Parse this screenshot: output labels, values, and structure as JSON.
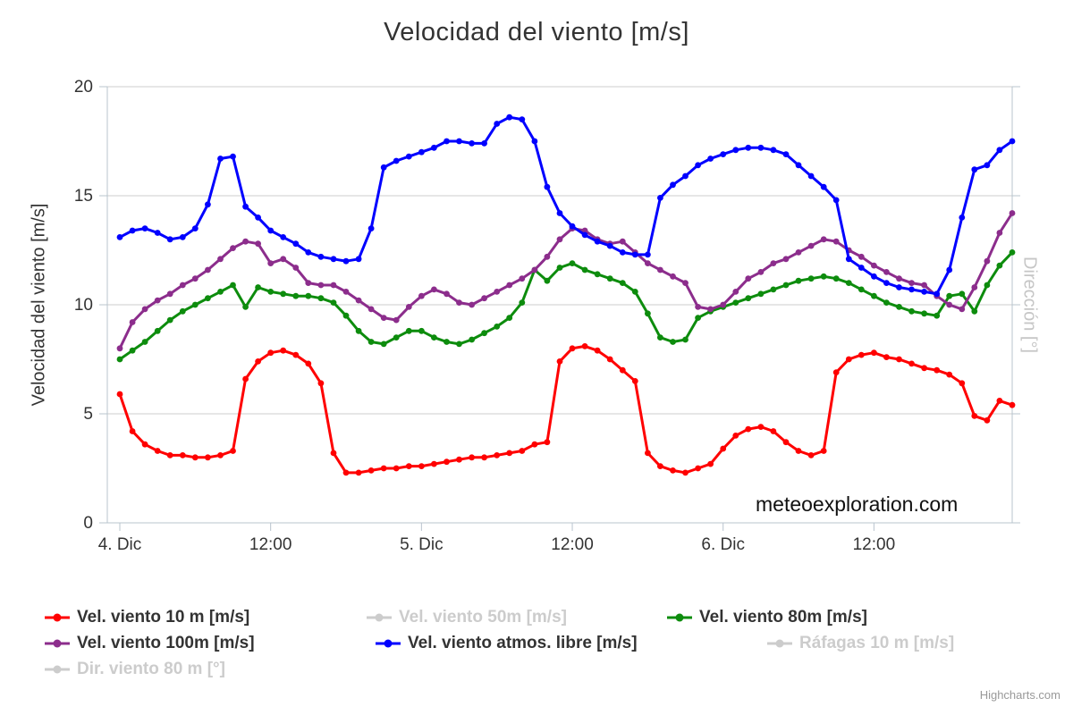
{
  "title": "Velocidad del viento [m/s]",
  "watermark": "meteoexploration.com",
  "credits": "Highcharts.com",
  "y_axis": {
    "title": "Velocidad del viento [m/s]",
    "ticks": [
      0,
      5,
      10,
      15,
      20
    ]
  },
  "y_axis_right": {
    "title": "Dirección [°]"
  },
  "x_axis": {
    "tick_hours": [
      0,
      12,
      24,
      36,
      48,
      60
    ],
    "tick_labels": [
      "4. Dic",
      "12:00",
      "5. Dic",
      "12:00",
      "6. Dic",
      "12:00"
    ]
  },
  "chart_data": {
    "type": "line",
    "x_unit": "hours from 4. Dic 00:00, hourly points",
    "ylim": [
      0,
      20
    ],
    "grid": "horizontal",
    "legend_position": "bottom-left",
    "series": [
      {
        "name": "Vel. viento 10 m [m/s]",
        "color": "#FF0000",
        "values": [
          5.9,
          4.2,
          3.6,
          3.3,
          3.1,
          3.1,
          3.0,
          3.0,
          3.1,
          3.3,
          6.6,
          7.4,
          7.8,
          7.9,
          7.7,
          7.3,
          6.4,
          3.2,
          2.3,
          2.3,
          2.4,
          2.5,
          2.5,
          2.6,
          2.6,
          2.7,
          2.8,
          2.9,
          3.0,
          3.0,
          3.1,
          3.2,
          3.3,
          3.6,
          3.7,
          7.4,
          8.0,
          8.1,
          7.9,
          7.5,
          7.0,
          6.5,
          3.2,
          2.6,
          2.4,
          2.3,
          2.5,
          2.7,
          3.4,
          4.0,
          4.3,
          4.4,
          4.2,
          3.7,
          3.3,
          3.1,
          3.3,
          6.9,
          7.5,
          7.7,
          7.8,
          7.6,
          7.5,
          7.3,
          7.1,
          7.0,
          6.8,
          6.4,
          4.9,
          4.7,
          5.6,
          5.4
        ]
      },
      {
        "name": "Vel. viento 80m [m/s]",
        "color": "#0D8C0D",
        "values": [
          7.5,
          7.9,
          8.3,
          8.8,
          9.3,
          9.7,
          10.0,
          10.3,
          10.6,
          10.9,
          9.9,
          10.8,
          10.6,
          10.5,
          10.4,
          10.4,
          10.3,
          10.1,
          9.5,
          8.8,
          8.3,
          8.2,
          8.5,
          8.8,
          8.8,
          8.5,
          8.3,
          8.2,
          8.4,
          8.7,
          9.0,
          9.4,
          10.1,
          11.6,
          11.1,
          11.7,
          11.9,
          11.6,
          11.4,
          11.2,
          11.0,
          10.6,
          9.6,
          8.5,
          8.3,
          8.4,
          9.4,
          9.7,
          9.9,
          10.1,
          10.3,
          10.5,
          10.7,
          10.9,
          11.1,
          11.2,
          11.3,
          11.2,
          11.0,
          10.7,
          10.4,
          10.1,
          9.9,
          9.7,
          9.6,
          9.5,
          10.4,
          10.5,
          9.7,
          10.9,
          11.8,
          12.4
        ]
      },
      {
        "name": "Vel. viento 100m [m/s]",
        "color": "#8C2D8C",
        "values": [
          8.0,
          9.2,
          9.8,
          10.2,
          10.5,
          10.9,
          11.2,
          11.6,
          12.1,
          12.6,
          12.9,
          12.8,
          11.9,
          12.1,
          11.7,
          11.0,
          10.9,
          10.9,
          10.6,
          10.2,
          9.8,
          9.4,
          9.3,
          9.9,
          10.4,
          10.7,
          10.5,
          10.1,
          10.0,
          10.3,
          10.6,
          10.9,
          11.2,
          11.6,
          12.2,
          13.0,
          13.5,
          13.4,
          13.0,
          12.8,
          12.9,
          12.4,
          11.9,
          11.6,
          11.3,
          11.0,
          9.9,
          9.8,
          10.0,
          10.6,
          11.2,
          11.5,
          11.9,
          12.1,
          12.4,
          12.7,
          13.0,
          12.9,
          12.5,
          12.2,
          11.8,
          11.5,
          11.2,
          11.0,
          10.9,
          10.4,
          10.0,
          9.8,
          10.8,
          12.0,
          13.3,
          14.2
        ]
      },
      {
        "name": "Vel. viento atmos. libre [m/s]",
        "color": "#0000FF",
        "values": [
          13.1,
          13.4,
          13.5,
          13.3,
          13.0,
          13.1,
          13.5,
          14.6,
          16.7,
          16.8,
          14.5,
          14.0,
          13.4,
          13.1,
          12.8,
          12.4,
          12.2,
          12.1,
          12.0,
          12.1,
          13.5,
          16.3,
          16.6,
          16.8,
          17.0,
          17.2,
          17.5,
          17.5,
          17.4,
          17.4,
          18.3,
          18.6,
          18.5,
          17.5,
          15.4,
          14.2,
          13.6,
          13.2,
          12.9,
          12.7,
          12.4,
          12.3,
          12.3,
          14.9,
          15.5,
          15.9,
          16.4,
          16.7,
          16.9,
          17.1,
          17.2,
          17.2,
          17.1,
          16.9,
          16.4,
          15.9,
          15.4,
          14.8,
          12.1,
          11.7,
          11.3,
          11.0,
          10.8,
          10.7,
          10.6,
          10.5,
          11.6,
          14.0,
          16.2,
          16.4,
          17.1,
          17.5
        ]
      }
    ]
  },
  "legend": {
    "items": [
      {
        "label": "Vel. viento 10 m [m/s]",
        "color": "#FF0000",
        "enabled": true
      },
      {
        "label": "Vel. viento 50m [m/s]",
        "color": "#CCCCCC",
        "enabled": false
      },
      {
        "label": "Vel. viento 80m [m/s]",
        "color": "#0D8C0D",
        "enabled": true
      },
      {
        "label": "Vel. viento 100m [m/s]",
        "color": "#8C2D8C",
        "enabled": true
      },
      {
        "label": "Vel. viento atmos. libre [m/s]",
        "color": "#0000FF",
        "enabled": true
      },
      {
        "label": "Ráfagas 10 m [m/s]",
        "color": "#CCCCCC",
        "enabled": false
      },
      {
        "label": "Dir. viento 80 m [°]",
        "color": "#CCCCCC",
        "enabled": false
      }
    ]
  }
}
